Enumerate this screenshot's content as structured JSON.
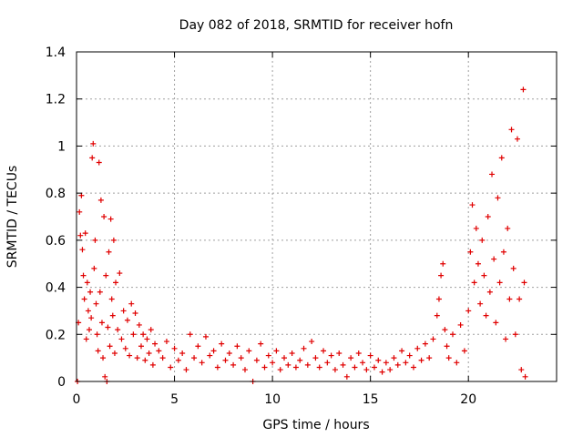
{
  "chart_data": {
    "type": "scatter",
    "title": "Day 082 of 2018, SRMTID for receiver hofn",
    "xlabel": "GPS time / hours",
    "ylabel": "SRMTID / TECUs",
    "xlim": [
      0,
      24.5
    ],
    "ylim": [
      0,
      1.4
    ],
    "x_ticks": [
      0,
      5,
      10,
      15,
      20
    ],
    "x_tick_labels": [
      "0",
      "5",
      "10",
      "15",
      "20"
    ],
    "y_ticks": [
      0,
      0.2,
      0.4,
      0.6,
      0.8,
      1,
      1.2,
      1.4
    ],
    "y_tick_labels": [
      "0",
      "0.2",
      "0.4",
      "0.6",
      "0.8",
      "1",
      "1.2",
      "1.4"
    ],
    "grid": true,
    "marker": "+",
    "series": [
      {
        "name": "SRMTID",
        "color": "#e00000",
        "points": [
          [
            0.05,
            0.0
          ],
          [
            0.1,
            0.25
          ],
          [
            0.15,
            0.72
          ],
          [
            0.2,
            0.62
          ],
          [
            0.25,
            0.79
          ],
          [
            0.3,
            0.56
          ],
          [
            0.35,
            0.45
          ],
          [
            0.4,
            0.35
          ],
          [
            0.45,
            0.63
          ],
          [
            0.5,
            0.18
          ],
          [
            0.55,
            0.42
          ],
          [
            0.6,
            0.3
          ],
          [
            0.65,
            0.22
          ],
          [
            0.7,
            0.38
          ],
          [
            0.75,
            0.27
          ],
          [
            0.8,
            0.95
          ],
          [
            0.85,
            1.01
          ],
          [
            0.9,
            0.48
          ],
          [
            0.95,
            0.6
          ],
          [
            1.0,
            0.33
          ],
          [
            1.05,
            0.2
          ],
          [
            1.1,
            0.13
          ],
          [
            1.15,
            0.93
          ],
          [
            1.2,
            0.38
          ],
          [
            1.25,
            0.77
          ],
          [
            1.3,
            0.25
          ],
          [
            1.35,
            0.1
          ],
          [
            1.4,
            0.7
          ],
          [
            1.45,
            0.02
          ],
          [
            1.5,
            0.45
          ],
          [
            1.55,
            0.0
          ],
          [
            1.6,
            0.23
          ],
          [
            1.65,
            0.55
          ],
          [
            1.7,
            0.15
          ],
          [
            1.75,
            0.69
          ],
          [
            1.8,
            0.35
          ],
          [
            1.85,
            0.28
          ],
          [
            1.9,
            0.6
          ],
          [
            1.95,
            0.12
          ],
          [
            2.0,
            0.42
          ],
          [
            2.1,
            0.22
          ],
          [
            2.2,
            0.46
          ],
          [
            2.3,
            0.18
          ],
          [
            2.4,
            0.3
          ],
          [
            2.5,
            0.14
          ],
          [
            2.6,
            0.26
          ],
          [
            2.7,
            0.11
          ],
          [
            2.8,
            0.33
          ],
          [
            2.9,
            0.2
          ],
          [
            3.0,
            0.29
          ],
          [
            3.1,
            0.1
          ],
          [
            3.2,
            0.24
          ],
          [
            3.3,
            0.15
          ],
          [
            3.4,
            0.2
          ],
          [
            3.5,
            0.09
          ],
          [
            3.6,
            0.18
          ],
          [
            3.7,
            0.12
          ],
          [
            3.8,
            0.22
          ],
          [
            3.9,
            0.07
          ],
          [
            4.0,
            0.16
          ],
          [
            4.2,
            0.13
          ],
          [
            4.4,
            0.1
          ],
          [
            4.6,
            0.17
          ],
          [
            4.8,
            0.06
          ],
          [
            5.0,
            0.14
          ],
          [
            5.2,
            0.09
          ],
          [
            5.4,
            0.12
          ],
          [
            5.6,
            0.05
          ],
          [
            5.8,
            0.2
          ],
          [
            6.0,
            0.1
          ],
          [
            6.2,
            0.15
          ],
          [
            6.4,
            0.08
          ],
          [
            6.6,
            0.19
          ],
          [
            6.8,
            0.11
          ],
          [
            7.0,
            0.13
          ],
          [
            7.2,
            0.06
          ],
          [
            7.4,
            0.16
          ],
          [
            7.6,
            0.09
          ],
          [
            7.8,
            0.12
          ],
          [
            8.0,
            0.07
          ],
          [
            8.2,
            0.15
          ],
          [
            8.4,
            0.1
          ],
          [
            8.6,
            0.05
          ],
          [
            8.8,
            0.13
          ],
          [
            9.0,
            0.0
          ],
          [
            9.2,
            0.09
          ],
          [
            9.4,
            0.16
          ],
          [
            9.6,
            0.06
          ],
          [
            9.8,
            0.11
          ],
          [
            10.0,
            0.08
          ],
          [
            10.2,
            0.13
          ],
          [
            10.4,
            0.05
          ],
          [
            10.6,
            0.1
          ],
          [
            10.8,
            0.07
          ],
          [
            11.0,
            0.12
          ],
          [
            11.2,
            0.06
          ],
          [
            11.4,
            0.09
          ],
          [
            11.6,
            0.14
          ],
          [
            11.8,
            0.07
          ],
          [
            12.0,
            0.17
          ],
          [
            12.2,
            0.1
          ],
          [
            12.4,
            0.06
          ],
          [
            12.6,
            0.13
          ],
          [
            12.8,
            0.08
          ],
          [
            13.0,
            0.11
          ],
          [
            13.2,
            0.05
          ],
          [
            13.4,
            0.12
          ],
          [
            13.6,
            0.07
          ],
          [
            13.8,
            0.02
          ],
          [
            14.0,
            0.1
          ],
          [
            14.2,
            0.06
          ],
          [
            14.4,
            0.12
          ],
          [
            14.6,
            0.08
          ],
          [
            14.8,
            0.05
          ],
          [
            15.0,
            0.11
          ],
          [
            15.2,
            0.06
          ],
          [
            15.4,
            0.09
          ],
          [
            15.6,
            0.04
          ],
          [
            15.8,
            0.08
          ],
          [
            16.0,
            0.05
          ],
          [
            16.2,
            0.1
          ],
          [
            16.4,
            0.07
          ],
          [
            16.6,
            0.13
          ],
          [
            16.8,
            0.08
          ],
          [
            17.0,
            0.11
          ],
          [
            17.2,
            0.06
          ],
          [
            17.4,
            0.14
          ],
          [
            17.6,
            0.09
          ],
          [
            17.8,
            0.16
          ],
          [
            18.0,
            0.1
          ],
          [
            18.2,
            0.18
          ],
          [
            18.4,
            0.28
          ],
          [
            18.5,
            0.35
          ],
          [
            18.6,
            0.45
          ],
          [
            18.7,
            0.5
          ],
          [
            18.8,
            0.22
          ],
          [
            18.9,
            0.15
          ],
          [
            19.0,
            0.1
          ],
          [
            19.2,
            0.2
          ],
          [
            19.4,
            0.08
          ],
          [
            19.6,
            0.24
          ],
          [
            19.8,
            0.13
          ],
          [
            20.0,
            0.3
          ],
          [
            20.1,
            0.55
          ],
          [
            20.2,
            0.75
          ],
          [
            20.3,
            0.42
          ],
          [
            20.4,
            0.65
          ],
          [
            20.5,
            0.5
          ],
          [
            20.6,
            0.33
          ],
          [
            20.7,
            0.6
          ],
          [
            20.8,
            0.45
          ],
          [
            20.9,
            0.28
          ],
          [
            21.0,
            0.7
          ],
          [
            21.1,
            0.38
          ],
          [
            21.2,
            0.88
          ],
          [
            21.3,
            0.52
          ],
          [
            21.4,
            0.25
          ],
          [
            21.5,
            0.78
          ],
          [
            21.6,
            0.42
          ],
          [
            21.7,
            0.95
          ],
          [
            21.8,
            0.55
          ],
          [
            21.9,
            0.18
          ],
          [
            22.0,
            0.65
          ],
          [
            22.1,
            0.35
          ],
          [
            22.2,
            1.07
          ],
          [
            22.3,
            0.48
          ],
          [
            22.4,
            0.2
          ],
          [
            22.5,
            1.03
          ],
          [
            22.6,
            0.35
          ],
          [
            22.7,
            0.05
          ],
          [
            22.8,
            1.24
          ],
          [
            22.85,
            0.42
          ],
          [
            22.9,
            0.02
          ]
        ]
      }
    ]
  }
}
